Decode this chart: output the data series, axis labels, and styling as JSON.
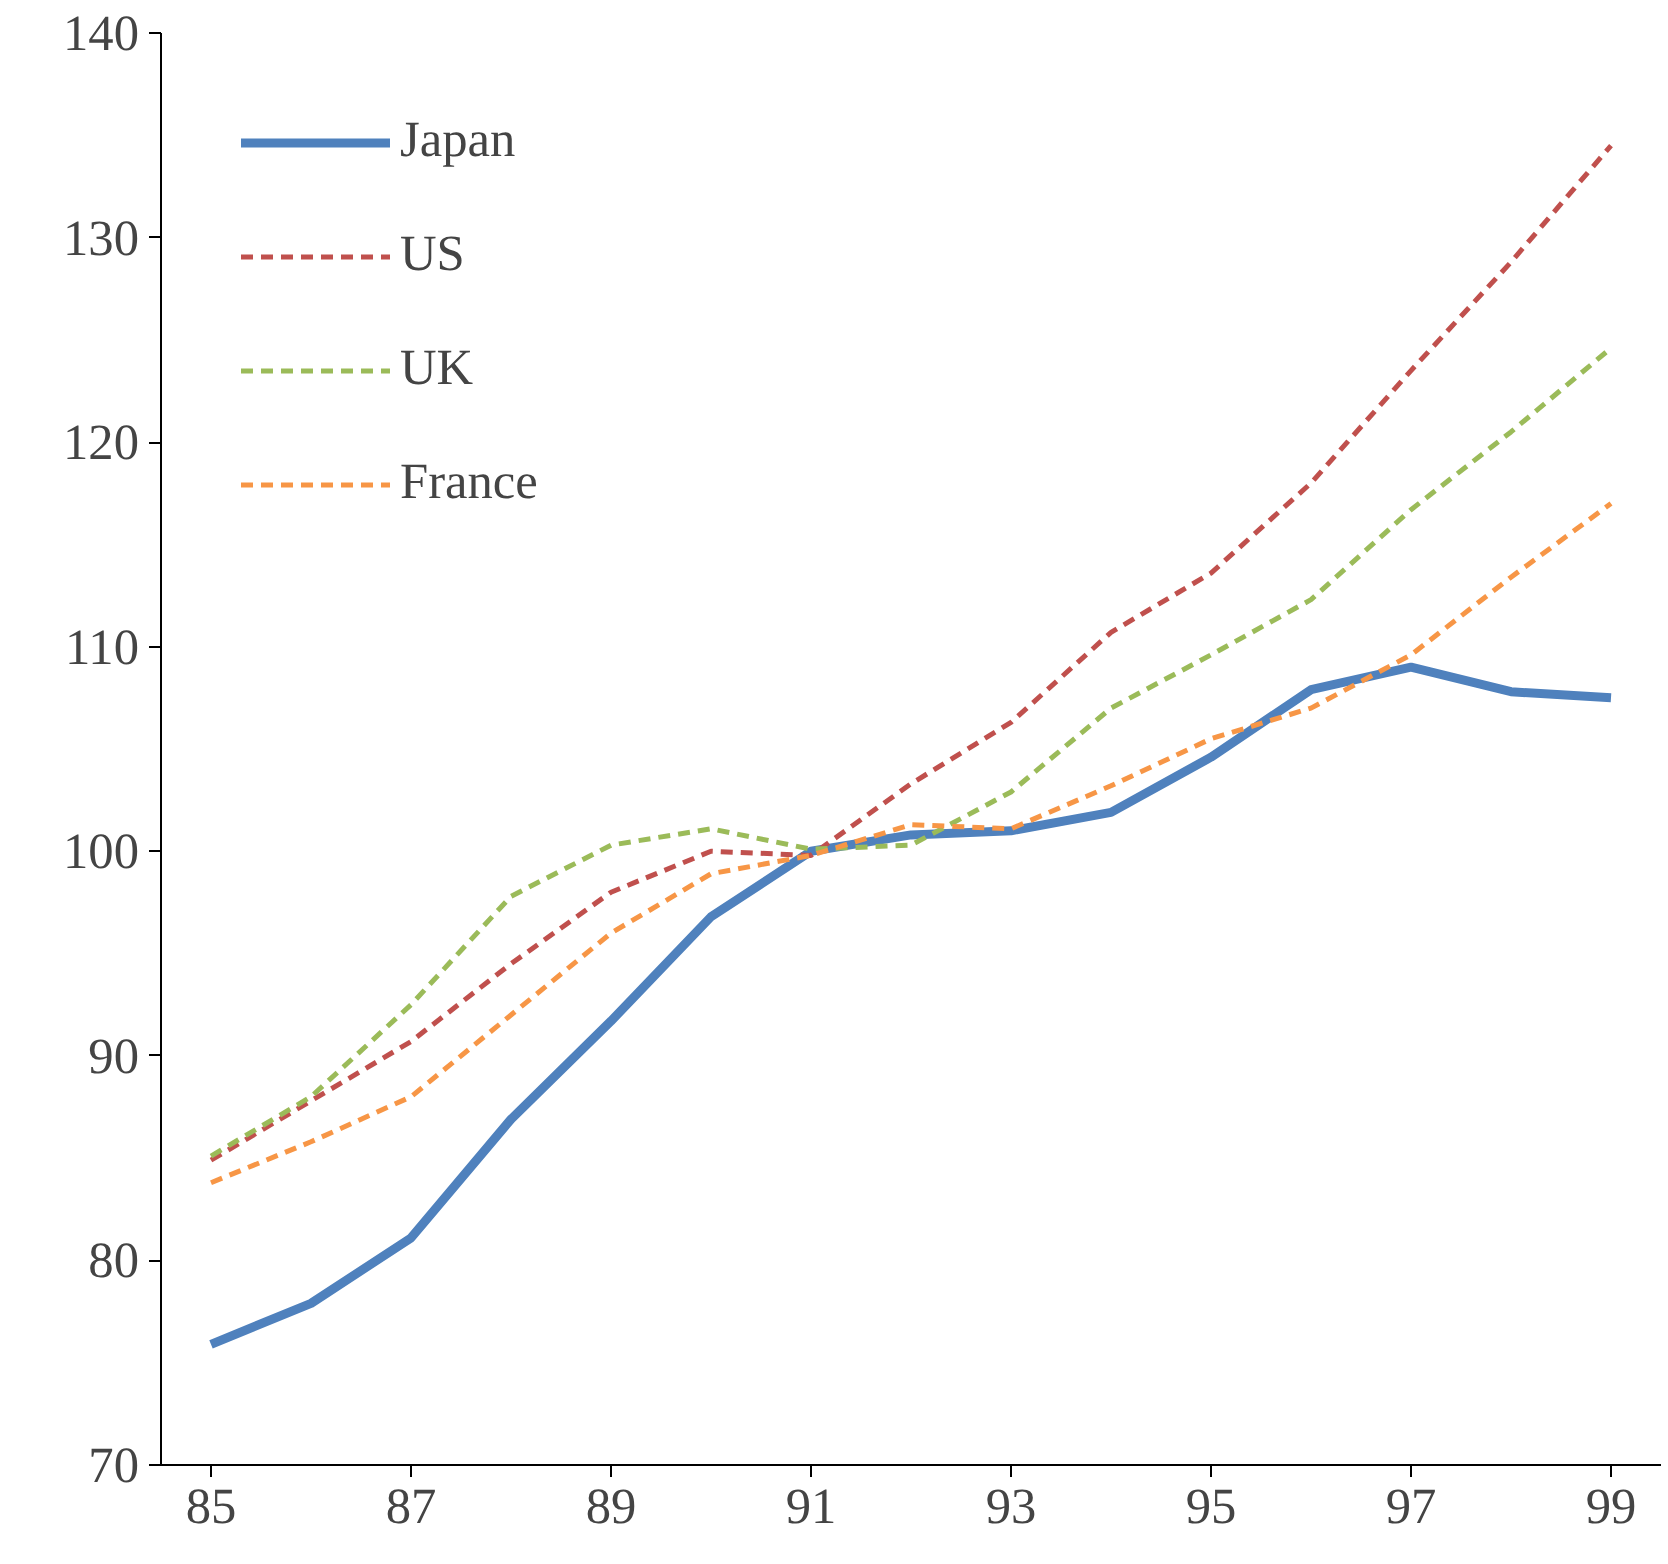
{
  "chart_data": {
    "type": "line",
    "x": [
      85,
      86,
      87,
      88,
      89,
      90,
      91,
      92,
      93,
      94,
      95,
      96,
      97,
      98,
      99
    ],
    "series": [
      {
        "name": "Japan",
        "color": "#4f81bd",
        "line_style": "solid",
        "values": [
          75.9,
          77.9,
          81.1,
          86.9,
          91.7,
          96.8,
          100,
          100.8,
          101,
          101.9,
          104.6,
          107.9,
          109,
          107.8,
          107.5
        ]
      },
      {
        "name": "US",
        "color": "#c0504d",
        "line_style": "dashed",
        "values": [
          84.9,
          87.8,
          90.7,
          94.5,
          98,
          100,
          99.8,
          103.3,
          106.3,
          110.7,
          113.6,
          118,
          123.5,
          128.8,
          134.5
        ]
      },
      {
        "name": "UK",
        "color": "#9bbb59",
        "line_style": "dashed",
        "values": [
          85.1,
          88,
          92.5,
          97.8,
          100.3,
          101.1,
          100.1,
          100.3,
          102.9,
          107,
          109.6,
          112.3,
          116.7,
          120.5,
          124.6
        ]
      },
      {
        "name": "France",
        "color": "#f79646",
        "line_style": "dashed",
        "values": [
          83.8,
          85.8,
          88,
          92,
          96,
          98.9,
          99.8,
          101.3,
          101.1,
          103.2,
          105.5,
          107,
          109.6,
          113.4,
          117
        ]
      }
    ],
    "xlim": [
      84.5,
      99.5
    ],
    "xticks": [
      85,
      87,
      89,
      91,
      93,
      95,
      97,
      99
    ],
    "ylim": [
      70,
      140
    ],
    "yticks": [
      70,
      80,
      90,
      100,
      110,
      120,
      130,
      140
    ],
    "grid": false,
    "legend": "top left",
    "marker": "none"
  }
}
